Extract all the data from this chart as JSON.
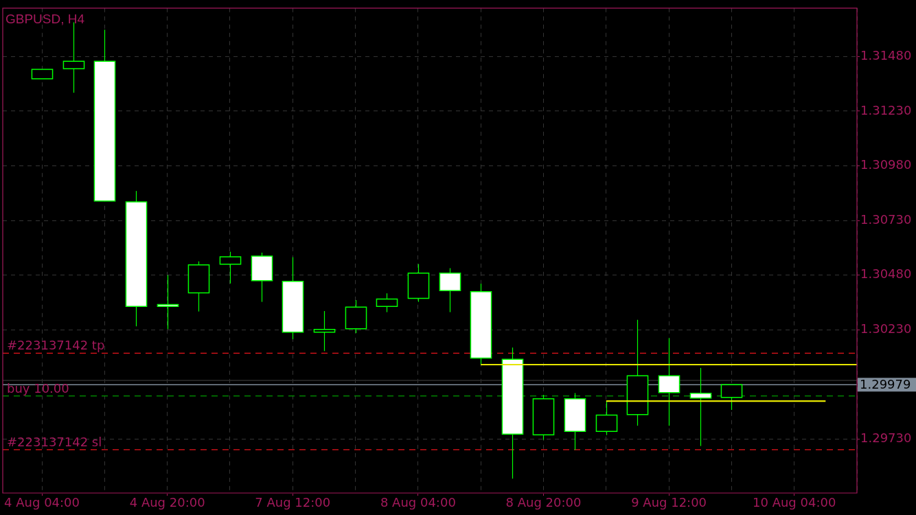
{
  "chart_data": {
    "type": "candlestick",
    "title": "GBPUSD, H4",
    "categories": [
      "4 Aug 04:00",
      null,
      null,
      null,
      "4 Aug 20:00",
      null,
      null,
      null,
      "7 Aug 12:00",
      null,
      null,
      null,
      "8 Aug 04:00",
      null,
      null,
      null,
      "8 Aug 20:00",
      null,
      null,
      null,
      "9 Aug 12:00",
      null,
      null,
      null,
      "10 Aug 04:00",
      null,
      null
    ],
    "ohlc": [
      [
        1.31378,
        1.31421,
        1.31378,
        1.31421
      ],
      [
        1.31424,
        1.31636,
        1.31314,
        1.31458
      ],
      [
        1.31458,
        1.31602,
        1.30819,
        1.30819
      ],
      [
        1.30815,
        1.30865,
        1.30246,
        1.30337
      ],
      [
        1.30346,
        1.3048,
        1.30233,
        1.30337
      ],
      [
        1.30399,
        1.30543,
        1.30314,
        1.30527
      ],
      [
        1.3053,
        1.30587,
        1.30442,
        1.30564
      ],
      [
        1.30567,
        1.30583,
        1.30358,
        1.30455
      ],
      [
        1.30452,
        1.30562,
        1.30187,
        1.30219
      ],
      [
        1.30219,
        1.30316,
        1.30133,
        1.30232
      ],
      [
        1.30235,
        1.30366,
        1.30215,
        1.30334
      ],
      [
        1.30337,
        1.30397,
        1.30311,
        1.30371
      ],
      [
        1.30374,
        1.30531,
        1.30358,
        1.30489
      ],
      [
        1.30489,
        1.30512,
        1.30311,
        1.30409
      ],
      [
        1.30405,
        1.30441,
        1.30071,
        1.30101
      ],
      [
        1.30095,
        1.30149,
        1.2955,
        1.29753
      ],
      [
        1.2975,
        1.29933,
        1.29727,
        1.29915
      ],
      [
        1.29915,
        1.29941,
        1.29681,
        1.29766
      ],
      [
        1.29766,
        1.29904,
        1.29749,
        1.2984
      ],
      [
        1.29843,
        1.30276,
        1.29792,
        1.3002
      ],
      [
        1.3002,
        1.30192,
        1.29792,
        1.29943
      ],
      [
        1.2994,
        1.30056,
        1.29699,
        1.29918
      ],
      [
        1.29921,
        1.29979,
        1.29864,
        1.29979
      ],
      null,
      null,
      null,
      null
    ],
    "color": "#00ff00",
    "colors": [
      "#000000",
      "#000000",
      "#ffffff",
      "#ffffff",
      "#ffffff",
      "#000000",
      "#000000",
      "#ffffff",
      "#ffffff",
      "#000000",
      "#000000",
      "#000000",
      "#000000",
      "#ffffff",
      "#ffffff",
      "#ffffff",
      "#000000",
      "#ffffff",
      "#000000",
      "#000000",
      "#ffffff",
      "#ffffff",
      "#000000",
      null,
      null,
      null,
      null
    ],
    "series": [
      {
        "type": "line",
        "color": "#e6e600",
        "values": [
          null,
          null,
          null,
          null,
          null,
          null,
          null,
          null,
          null,
          null,
          null,
          null,
          null,
          null,
          1.30071,
          1.30071,
          1.30071,
          1.30071,
          1.30071,
          1.30071,
          1.30071,
          1.30071,
          1.30071,
          1.30071,
          1.30071,
          1.30071,
          1.30071
        ]
      },
      {
        "type": "line",
        "color": "#e6e600",
        "values": [
          null,
          null,
          null,
          null,
          null,
          null,
          null,
          null,
          null,
          null,
          null,
          null,
          null,
          null,
          null,
          null,
          null,
          null,
          1.29904,
          1.29904,
          1.29904,
          1.29904,
          1.29904,
          1.29904,
          1.29904,
          1.29904,
          null
        ]
      }
    ],
    "ylim": [
      1.29484,
      1.31701
    ],
    "yticks": [
      {
        "value": 1.3148,
        "label": "1.31480"
      },
      {
        "value": 1.3123,
        "label": "1.31230"
      },
      {
        "value": 1.3098,
        "label": "1.30980"
      },
      {
        "value": 1.3073,
        "label": "1.30730"
      },
      {
        "value": 1.3048,
        "label": "1.30480"
      },
      {
        "value": 1.3023,
        "label": "1.30230"
      },
      {
        "value": 1.2973,
        "label": "1.29730"
      }
    ],
    "grid": true,
    "ref_lines": [
      {
        "axis": "y",
        "value": 1.30123,
        "label": "#223137142 tp",
        "color": "#e8141c",
        "line_style": "dashed"
      },
      {
        "axis": "y",
        "value": 1.29999,
        "color": "#2e2e2e",
        "line_style": "solid"
      },
      {
        "axis": "y",
        "value": 1.29979,
        "label": "1.29979",
        "color": "#7f8c9a",
        "line_style": "solid"
      },
      {
        "axis": "y",
        "value": 1.29928,
        "label": "buy 10.00",
        "color": "#009900",
        "line_style": "dashed"
      },
      {
        "axis": "y",
        "value": 1.29682,
        "label": "#223137142 sl",
        "color": "#e8141c",
        "line_style": "dashed"
      }
    ]
  }
}
